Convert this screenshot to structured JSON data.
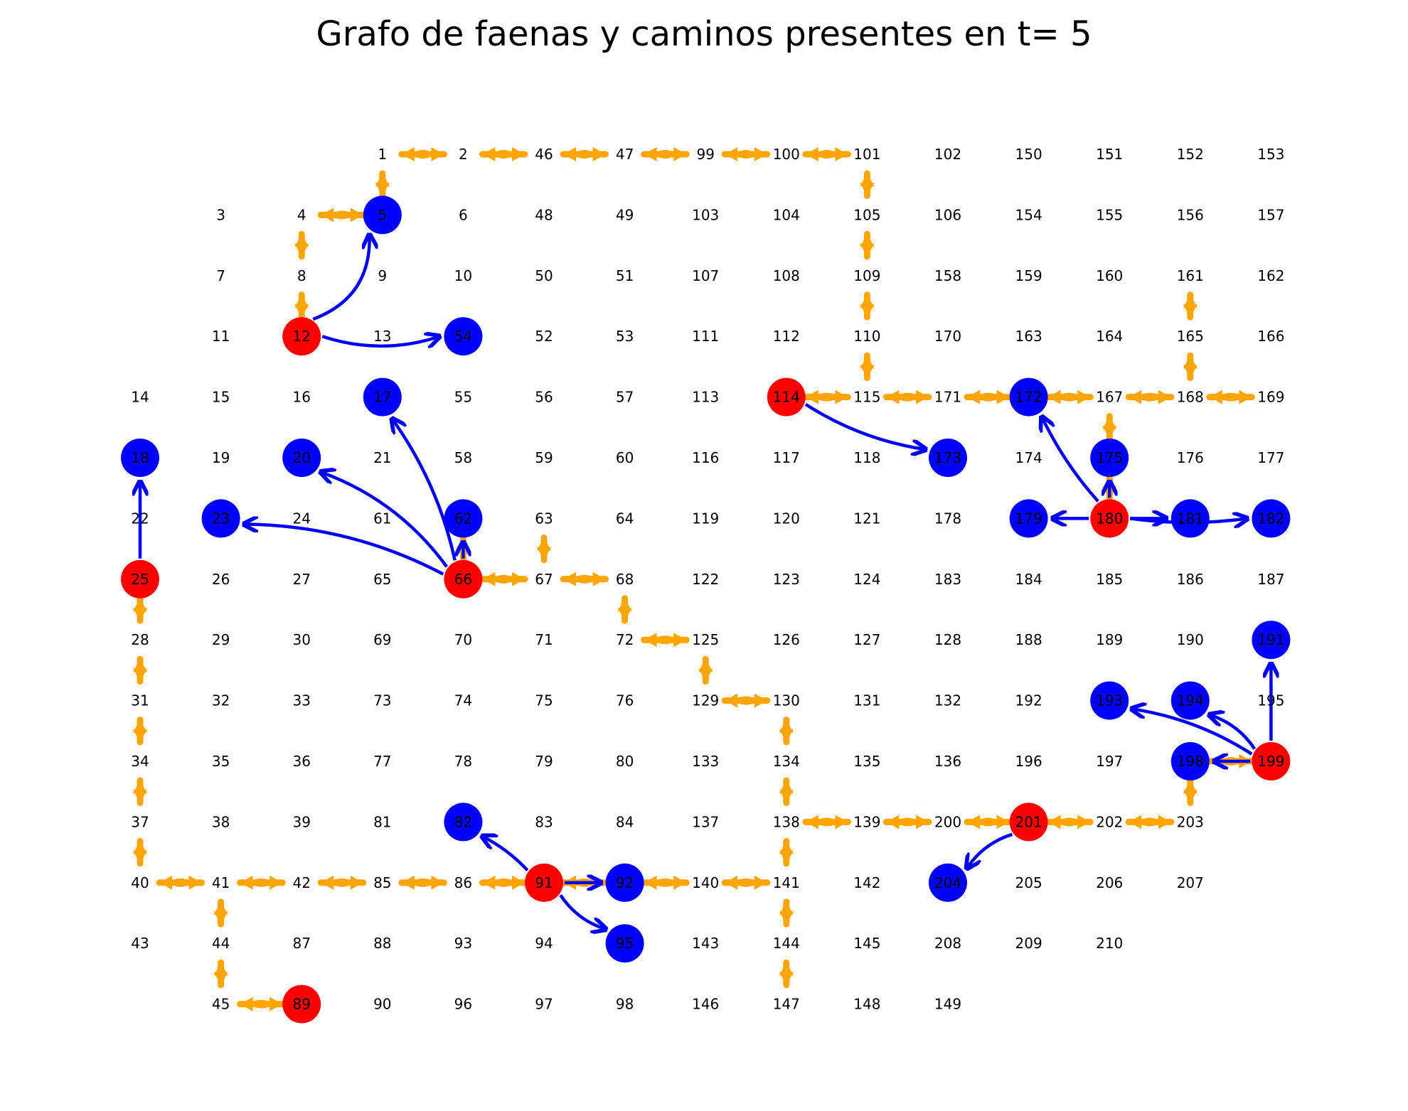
{
  "title": "Grafo de faenas y caminos presentes en t= 5",
  "colors": {
    "faena": "#ff0000",
    "destino": "#0000ff",
    "arista_camino": "#0000ff",
    "camino_existente": "#ffa500",
    "texto": "#000000",
    "fondo": "#ffffff"
  },
  "nodes": [
    {
      "id": "1",
      "c": 5,
      "r": 0
    },
    {
      "id": "2",
      "c": 6,
      "r": 0
    },
    {
      "id": "46",
      "c": 7,
      "r": 0
    },
    {
      "id": "47",
      "c": 8,
      "r": 0
    },
    {
      "id": "99",
      "c": 9,
      "r": 0
    },
    {
      "id": "100",
      "c": 10,
      "r": 0
    },
    {
      "id": "101",
      "c": 11,
      "r": 0
    },
    {
      "id": "102",
      "c": 12,
      "r": 0
    },
    {
      "id": "150",
      "c": 13,
      "r": 0
    },
    {
      "id": "151",
      "c": 14,
      "r": 0
    },
    {
      "id": "152",
      "c": 15,
      "r": 0
    },
    {
      "id": "153",
      "c": 16,
      "r": 0
    },
    {
      "id": "3",
      "c": 3,
      "r": 1
    },
    {
      "id": "4",
      "c": 4,
      "r": 1
    },
    {
      "id": "5",
      "c": 5,
      "r": 1,
      "t": "destino"
    },
    {
      "id": "6",
      "c": 6,
      "r": 1
    },
    {
      "id": "48",
      "c": 7,
      "r": 1
    },
    {
      "id": "49",
      "c": 8,
      "r": 1
    },
    {
      "id": "103",
      "c": 9,
      "r": 1
    },
    {
      "id": "104",
      "c": 10,
      "r": 1
    },
    {
      "id": "105",
      "c": 11,
      "r": 1
    },
    {
      "id": "106",
      "c": 12,
      "r": 1
    },
    {
      "id": "154",
      "c": 13,
      "r": 1
    },
    {
      "id": "155",
      "c": 14,
      "r": 1
    },
    {
      "id": "156",
      "c": 15,
      "r": 1
    },
    {
      "id": "157",
      "c": 16,
      "r": 1
    },
    {
      "id": "7",
      "c": 3,
      "r": 2
    },
    {
      "id": "8",
      "c": 4,
      "r": 2
    },
    {
      "id": "9",
      "c": 5,
      "r": 2
    },
    {
      "id": "10",
      "c": 6,
      "r": 2
    },
    {
      "id": "50",
      "c": 7,
      "r": 2
    },
    {
      "id": "51",
      "c": 8,
      "r": 2
    },
    {
      "id": "107",
      "c": 9,
      "r": 2
    },
    {
      "id": "108",
      "c": 10,
      "r": 2
    },
    {
      "id": "109",
      "c": 11,
      "r": 2
    },
    {
      "id": "158",
      "c": 12,
      "r": 2
    },
    {
      "id": "159",
      "c": 13,
      "r": 2
    },
    {
      "id": "160",
      "c": 14,
      "r": 2
    },
    {
      "id": "161",
      "c": 15,
      "r": 2
    },
    {
      "id": "162",
      "c": 16,
      "r": 2
    },
    {
      "id": "11",
      "c": 3,
      "r": 3
    },
    {
      "id": "12",
      "c": 4,
      "r": 3,
      "t": "faena"
    },
    {
      "id": "13",
      "c": 5,
      "r": 3
    },
    {
      "id": "54",
      "c": 6,
      "r": 3,
      "t": "destino"
    },
    {
      "id": "52",
      "c": 7,
      "r": 3
    },
    {
      "id": "53",
      "c": 8,
      "r": 3
    },
    {
      "id": "111",
      "c": 9,
      "r": 3
    },
    {
      "id": "112",
      "c": 10,
      "r": 3
    },
    {
      "id": "110",
      "c": 11,
      "r": 3
    },
    {
      "id": "170",
      "c": 12,
      "r": 3
    },
    {
      "id": "163",
      "c": 13,
      "r": 3
    },
    {
      "id": "164",
      "c": 14,
      "r": 3
    },
    {
      "id": "165",
      "c": 15,
      "r": 3
    },
    {
      "id": "166",
      "c": 16,
      "r": 3
    },
    {
      "id": "14",
      "c": 2,
      "r": 4
    },
    {
      "id": "15",
      "c": 3,
      "r": 4
    },
    {
      "id": "16",
      "c": 4,
      "r": 4
    },
    {
      "id": "17",
      "c": 5,
      "r": 4,
      "t": "destino"
    },
    {
      "id": "55",
      "c": 6,
      "r": 4
    },
    {
      "id": "56",
      "c": 7,
      "r": 4
    },
    {
      "id": "57",
      "c": 8,
      "r": 4
    },
    {
      "id": "113",
      "c": 9,
      "r": 4
    },
    {
      "id": "114",
      "c": 10,
      "r": 4,
      "t": "faena"
    },
    {
      "id": "115",
      "c": 11,
      "r": 4
    },
    {
      "id": "171",
      "c": 12,
      "r": 4
    },
    {
      "id": "172",
      "c": 13,
      "r": 4,
      "t": "destino"
    },
    {
      "id": "167",
      "c": 14,
      "r": 4
    },
    {
      "id": "168",
      "c": 15,
      "r": 4
    },
    {
      "id": "169",
      "c": 16,
      "r": 4
    },
    {
      "id": "18",
      "c": 2,
      "r": 5,
      "t": "destino"
    },
    {
      "id": "19",
      "c": 3,
      "r": 5
    },
    {
      "id": "20",
      "c": 4,
      "r": 5,
      "t": "destino"
    },
    {
      "id": "21",
      "c": 5,
      "r": 5
    },
    {
      "id": "58",
      "c": 6,
      "r": 5
    },
    {
      "id": "59",
      "c": 7,
      "r": 5
    },
    {
      "id": "60",
      "c": 8,
      "r": 5
    },
    {
      "id": "116",
      "c": 9,
      "r": 5
    },
    {
      "id": "117",
      "c": 10,
      "r": 5
    },
    {
      "id": "118",
      "c": 11,
      "r": 5
    },
    {
      "id": "173",
      "c": 12,
      "r": 5,
      "t": "destino"
    },
    {
      "id": "174",
      "c": 13,
      "r": 5
    },
    {
      "id": "175",
      "c": 14,
      "r": 5,
      "t": "destino"
    },
    {
      "id": "176",
      "c": 15,
      "r": 5
    },
    {
      "id": "177",
      "c": 16,
      "r": 5
    },
    {
      "id": "22",
      "c": 2,
      "r": 6
    },
    {
      "id": "23",
      "c": 3,
      "r": 6,
      "t": "destino"
    },
    {
      "id": "24",
      "c": 4,
      "r": 6
    },
    {
      "id": "61",
      "c": 5,
      "r": 6
    },
    {
      "id": "62",
      "c": 6,
      "r": 6,
      "t": "destino"
    },
    {
      "id": "63",
      "c": 7,
      "r": 6
    },
    {
      "id": "64",
      "c": 8,
      "r": 6
    },
    {
      "id": "119",
      "c": 9,
      "r": 6
    },
    {
      "id": "120",
      "c": 10,
      "r": 6
    },
    {
      "id": "121",
      "c": 11,
      "r": 6
    },
    {
      "id": "178",
      "c": 12,
      "r": 6
    },
    {
      "id": "179",
      "c": 13,
      "r": 6,
      "t": "destino"
    },
    {
      "id": "180",
      "c": 14,
      "r": 6,
      "t": "faena"
    },
    {
      "id": "181",
      "c": 15,
      "r": 6,
      "t": "destino"
    },
    {
      "id": "182",
      "c": 16,
      "r": 6,
      "t": "destino"
    },
    {
      "id": "25",
      "c": 2,
      "r": 7,
      "t": "faena"
    },
    {
      "id": "26",
      "c": 3,
      "r": 7
    },
    {
      "id": "27",
      "c": 4,
      "r": 7
    },
    {
      "id": "65",
      "c": 5,
      "r": 7
    },
    {
      "id": "66",
      "c": 6,
      "r": 7,
      "t": "faena"
    },
    {
      "id": "67",
      "c": 7,
      "r": 7
    },
    {
      "id": "68",
      "c": 8,
      "r": 7
    },
    {
      "id": "122",
      "c": 9,
      "r": 7
    },
    {
      "id": "123",
      "c": 10,
      "r": 7
    },
    {
      "id": "124",
      "c": 11,
      "r": 7
    },
    {
      "id": "183",
      "c": 12,
      "r": 7
    },
    {
      "id": "184",
      "c": 13,
      "r": 7
    },
    {
      "id": "185",
      "c": 14,
      "r": 7
    },
    {
      "id": "186",
      "c": 15,
      "r": 7
    },
    {
      "id": "187",
      "c": 16,
      "r": 7
    },
    {
      "id": "28",
      "c": 2,
      "r": 8
    },
    {
      "id": "29",
      "c": 3,
      "r": 8
    },
    {
      "id": "30",
      "c": 4,
      "r": 8
    },
    {
      "id": "69",
      "c": 5,
      "r": 8
    },
    {
      "id": "70",
      "c": 6,
      "r": 8
    },
    {
      "id": "71",
      "c": 7,
      "r": 8
    },
    {
      "id": "72",
      "c": 8,
      "r": 8
    },
    {
      "id": "125",
      "c": 9,
      "r": 8
    },
    {
      "id": "126",
      "c": 10,
      "r": 8
    },
    {
      "id": "127",
      "c": 11,
      "r": 8
    },
    {
      "id": "128",
      "c": 12,
      "r": 8
    },
    {
      "id": "188",
      "c": 13,
      "r": 8
    },
    {
      "id": "189",
      "c": 14,
      "r": 8
    },
    {
      "id": "190",
      "c": 15,
      "r": 8
    },
    {
      "id": "191",
      "c": 16,
      "r": 8,
      "t": "destino"
    },
    {
      "id": "31",
      "c": 2,
      "r": 9
    },
    {
      "id": "32",
      "c": 3,
      "r": 9
    },
    {
      "id": "33",
      "c": 4,
      "r": 9
    },
    {
      "id": "73",
      "c": 5,
      "r": 9
    },
    {
      "id": "74",
      "c": 6,
      "r": 9
    },
    {
      "id": "75",
      "c": 7,
      "r": 9
    },
    {
      "id": "76",
      "c": 8,
      "r": 9
    },
    {
      "id": "129",
      "c": 9,
      "r": 9
    },
    {
      "id": "130",
      "c": 10,
      "r": 9
    },
    {
      "id": "131",
      "c": 11,
      "r": 9
    },
    {
      "id": "132",
      "c": 12,
      "r": 9
    },
    {
      "id": "192",
      "c": 13,
      "r": 9
    },
    {
      "id": "193",
      "c": 14,
      "r": 9,
      "t": "destino"
    },
    {
      "id": "194",
      "c": 15,
      "r": 9,
      "t": "destino"
    },
    {
      "id": "195",
      "c": 16,
      "r": 9
    },
    {
      "id": "34",
      "c": 2,
      "r": 10
    },
    {
      "id": "35",
      "c": 3,
      "r": 10
    },
    {
      "id": "36",
      "c": 4,
      "r": 10
    },
    {
      "id": "77",
      "c": 5,
      "r": 10
    },
    {
      "id": "78",
      "c": 6,
      "r": 10
    },
    {
      "id": "79",
      "c": 7,
      "r": 10
    },
    {
      "id": "80",
      "c": 8,
      "r": 10
    },
    {
      "id": "133",
      "c": 9,
      "r": 10
    },
    {
      "id": "134",
      "c": 10,
      "r": 10
    },
    {
      "id": "135",
      "c": 11,
      "r": 10
    },
    {
      "id": "136",
      "c": 12,
      "r": 10
    },
    {
      "id": "196",
      "c": 13,
      "r": 10
    },
    {
      "id": "197",
      "c": 14,
      "r": 10
    },
    {
      "id": "198",
      "c": 15,
      "r": 10,
      "t": "destino"
    },
    {
      "id": "199",
      "c": 16,
      "r": 10,
      "t": "faena"
    },
    {
      "id": "37",
      "c": 2,
      "r": 11
    },
    {
      "id": "38",
      "c": 3,
      "r": 11
    },
    {
      "id": "39",
      "c": 4,
      "r": 11
    },
    {
      "id": "81",
      "c": 5,
      "r": 11
    },
    {
      "id": "82",
      "c": 6,
      "r": 11,
      "t": "destino"
    },
    {
      "id": "83",
      "c": 7,
      "r": 11
    },
    {
      "id": "84",
      "c": 8,
      "r": 11
    },
    {
      "id": "137",
      "c": 9,
      "r": 11
    },
    {
      "id": "138",
      "c": 10,
      "r": 11
    },
    {
      "id": "139",
      "c": 11,
      "r": 11
    },
    {
      "id": "200",
      "c": 12,
      "r": 11
    },
    {
      "id": "201",
      "c": 13,
      "r": 11,
      "t": "faena"
    },
    {
      "id": "202",
      "c": 14,
      "r": 11
    },
    {
      "id": "203",
      "c": 15,
      "r": 11
    },
    {
      "id": "40",
      "c": 2,
      "r": 12
    },
    {
      "id": "41",
      "c": 3,
      "r": 12
    },
    {
      "id": "42",
      "c": 4,
      "r": 12
    },
    {
      "id": "85",
      "c": 5,
      "r": 12
    },
    {
      "id": "86",
      "c": 6,
      "r": 12
    },
    {
      "id": "91",
      "c": 7,
      "r": 12,
      "t": "faena"
    },
    {
      "id": "92",
      "c": 8,
      "r": 12,
      "t": "destino"
    },
    {
      "id": "140",
      "c": 9,
      "r": 12
    },
    {
      "id": "141",
      "c": 10,
      "r": 12
    },
    {
      "id": "142",
      "c": 11,
      "r": 12
    },
    {
      "id": "204",
      "c": 12,
      "r": 12,
      "t": "destino"
    },
    {
      "id": "205",
      "c": 13,
      "r": 12
    },
    {
      "id": "206",
      "c": 14,
      "r": 12
    },
    {
      "id": "207",
      "c": 15,
      "r": 12
    },
    {
      "id": "43",
      "c": 2,
      "r": 13
    },
    {
      "id": "44",
      "c": 3,
      "r": 13
    },
    {
      "id": "87",
      "c": 4,
      "r": 13
    },
    {
      "id": "88",
      "c": 5,
      "r": 13
    },
    {
      "id": "93",
      "c": 6,
      "r": 13
    },
    {
      "id": "94",
      "c": 7,
      "r": 13
    },
    {
      "id": "95",
      "c": 8,
      "r": 13,
      "t": "destino"
    },
    {
      "id": "143",
      "c": 9,
      "r": 13
    },
    {
      "id": "144",
      "c": 10,
      "r": 13
    },
    {
      "id": "145",
      "c": 11,
      "r": 13
    },
    {
      "id": "208",
      "c": 12,
      "r": 13
    },
    {
      "id": "209",
      "c": 13,
      "r": 13
    },
    {
      "id": "210",
      "c": 14,
      "r": 13
    },
    {
      "id": "45",
      "c": 3,
      "r": 14
    },
    {
      "id": "89",
      "c": 4,
      "r": 14,
      "t": "faena"
    },
    {
      "id": "90",
      "c": 5,
      "r": 14
    },
    {
      "id": "96",
      "c": 6,
      "r": 14
    },
    {
      "id": "97",
      "c": 7,
      "r": 14
    },
    {
      "id": "98",
      "c": 8,
      "r": 14
    },
    {
      "id": "146",
      "c": 9,
      "r": 14
    },
    {
      "id": "147",
      "c": 10,
      "r": 14
    },
    {
      "id": "148",
      "c": 11,
      "r": 14
    },
    {
      "id": "149",
      "c": 12,
      "r": 14
    }
  ],
  "existing_roads": [
    [
      "1",
      "2"
    ],
    [
      "2",
      "46"
    ],
    [
      "46",
      "47"
    ],
    [
      "47",
      "99"
    ],
    [
      "99",
      "100"
    ],
    [
      "100",
      "101"
    ],
    [
      "101",
      "105"
    ],
    [
      "105",
      "109"
    ],
    [
      "109",
      "110"
    ],
    [
      "110",
      "115"
    ],
    [
      "114",
      "115"
    ],
    [
      "115",
      "171"
    ],
    [
      "171",
      "172"
    ],
    [
      "172",
      "167"
    ],
    [
      "167",
      "168"
    ],
    [
      "168",
      "169"
    ],
    [
      "165",
      "168"
    ],
    [
      "161",
      "165"
    ],
    [
      "167",
      "175"
    ],
    [
      "175",
      "180"
    ],
    [
      "1",
      "5"
    ],
    [
      "4",
      "5"
    ],
    [
      "4",
      "8"
    ],
    [
      "8",
      "12"
    ],
    [
      "62",
      "66"
    ],
    [
      "66",
      "67"
    ],
    [
      "67",
      "68"
    ],
    [
      "63",
      "67"
    ],
    [
      "68",
      "72"
    ],
    [
      "72",
      "125"
    ],
    [
      "125",
      "129"
    ],
    [
      "129",
      "130"
    ],
    [
      "130",
      "134"
    ],
    [
      "134",
      "138"
    ],
    [
      "138",
      "139"
    ],
    [
      "139",
      "200"
    ],
    [
      "200",
      "201"
    ],
    [
      "201",
      "202"
    ],
    [
      "202",
      "203"
    ],
    [
      "198",
      "203"
    ],
    [
      "198",
      "199"
    ],
    [
      "138",
      "141"
    ],
    [
      "141",
      "144"
    ],
    [
      "144",
      "147"
    ],
    [
      "140",
      "141"
    ],
    [
      "92",
      "140"
    ],
    [
      "91",
      "92"
    ],
    [
      "86",
      "91"
    ],
    [
      "85",
      "86"
    ],
    [
      "42",
      "85"
    ],
    [
      "41",
      "42"
    ],
    [
      "40",
      "41"
    ],
    [
      "25",
      "28"
    ],
    [
      "28",
      "31"
    ],
    [
      "31",
      "34"
    ],
    [
      "34",
      "37"
    ],
    [
      "37",
      "40"
    ],
    [
      "41",
      "44"
    ],
    [
      "44",
      "45"
    ],
    [
      "45",
      "89"
    ]
  ],
  "paths": [
    {
      "from": "12",
      "to": "5",
      "bend": 0.25
    },
    {
      "from": "12",
      "to": "54",
      "bend": 0.12
    },
    {
      "from": "66",
      "to": "17",
      "bend": 0.08
    },
    {
      "from": "66",
      "to": "20",
      "bend": 0.12
    },
    {
      "from": "66",
      "to": "23",
      "bend": 0.1
    },
    {
      "from": "66",
      "to": "62",
      "bend": 0
    },
    {
      "from": "25",
      "to": "18",
      "bend": 0
    },
    {
      "from": "114",
      "to": "173",
      "bend": 0.08
    },
    {
      "from": "180",
      "to": "172",
      "bend": -0.05
    },
    {
      "from": "180",
      "to": "175",
      "bend": 0
    },
    {
      "from": "180",
      "to": "179",
      "bend": 0
    },
    {
      "from": "180",
      "to": "181",
      "bend": 0
    },
    {
      "from": "180",
      "to": "182",
      "bend": 0.05
    },
    {
      "from": "199",
      "to": "191",
      "bend": 0
    },
    {
      "from": "199",
      "to": "194",
      "bend": 0.1
    },
    {
      "from": "199",
      "to": "193",
      "bend": 0.08
    },
    {
      "from": "199",
      "to": "198",
      "bend": 0
    },
    {
      "from": "201",
      "to": "204",
      "bend": 0.1
    },
    {
      "from": "91",
      "to": "82",
      "bend": 0.05
    },
    {
      "from": "91",
      "to": "92",
      "bend": 0
    },
    {
      "from": "91",
      "to": "95",
      "bend": 0.1
    }
  ]
}
